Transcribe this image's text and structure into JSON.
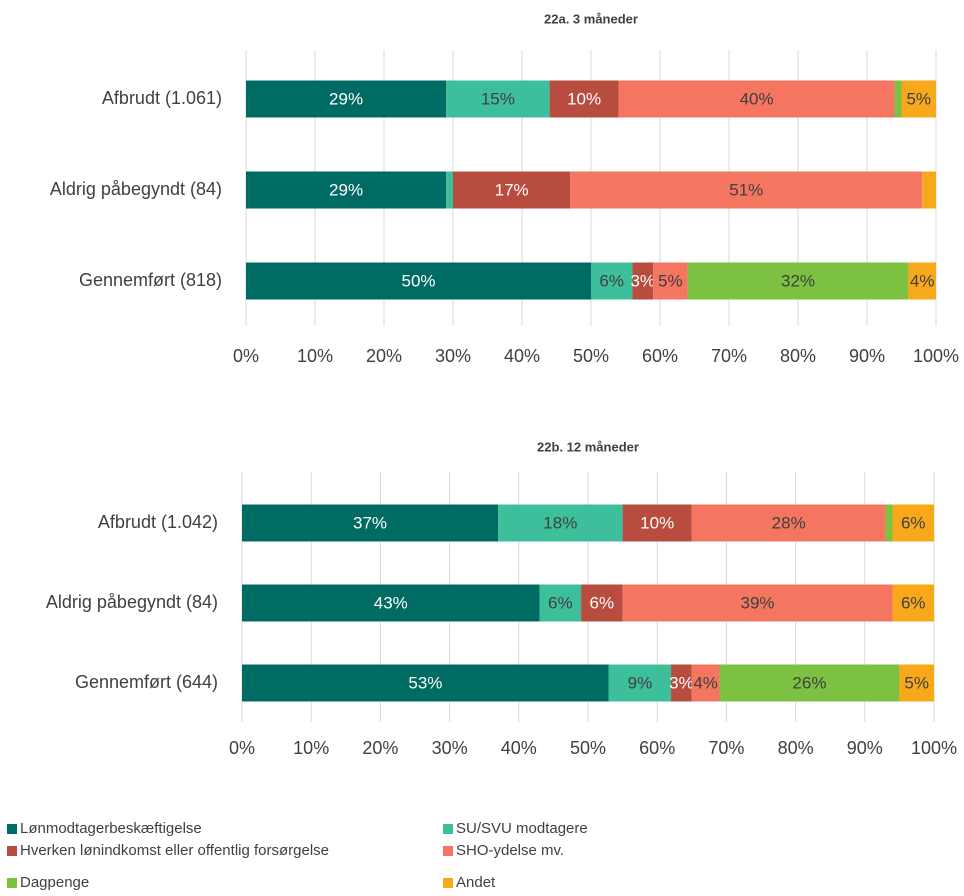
{
  "chart_data": [
    {
      "type": "stacked_bar_h",
      "title": "22a. 3 måneder",
      "categories": [
        "Afbrudt (1.061)",
        "Aldrig påbegyndt (84)",
        "Gennemført (818)"
      ],
      "xlim": [
        0,
        100
      ],
      "xticks": [
        {
          "value": 0,
          "label": "0%"
        },
        {
          "value": 10,
          "label": "10%"
        },
        {
          "value": 20,
          "label": "20%"
        },
        {
          "value": 30,
          "label": "30%"
        },
        {
          "value": 40,
          "label": "40%"
        },
        {
          "value": 50,
          "label": "50%"
        },
        {
          "value": 60,
          "label": "60%"
        },
        {
          "value": 70,
          "label": "70%"
        },
        {
          "value": 80,
          "label": "80%"
        },
        {
          "value": 90,
          "label": "90%"
        },
        {
          "value": 100,
          "label": "100%"
        }
      ],
      "grid": true,
      "series": [
        {
          "name": "Lønmodtagerbeskæftigelse",
          "color": "#006b63",
          "label_color": "#ffffff",
          "values": [
            29,
            29,
            50
          ],
          "value_labels": [
            "29%",
            "29%",
            "50%"
          ]
        },
        {
          "name": "SU/SVU modtagere",
          "color": "#3dbf9c",
          "label_color": "#404040",
          "values": [
            15,
            1,
            6
          ],
          "value_labels": [
            "15%",
            null,
            "6%"
          ]
        },
        {
          "name": "Hverken lønindkomst eller offentlig forsørgelse",
          "color": "#b84c3e",
          "label_color": "#ffffff",
          "values": [
            10,
            17,
            3
          ],
          "value_labels": [
            "10%",
            "17%",
            "3%"
          ]
        },
        {
          "name": "SHO-ydelse mv.",
          "color": "#f47560",
          "label_color": "#404040",
          "values": [
            40,
            51,
            5
          ],
          "value_labels": [
            "40%",
            "51%",
            "5%"
          ]
        },
        {
          "name": "Dagpenge",
          "color": "#7cc142",
          "label_color": "#404040",
          "values": [
            1,
            0,
            32
          ],
          "value_labels": [
            null,
            null,
            "32%"
          ]
        },
        {
          "name": "Andet",
          "color": "#f7a81b",
          "label_color": "#404040",
          "values": [
            5,
            2,
            4
          ],
          "value_labels": [
            "5%",
            null,
            "4%"
          ]
        }
      ]
    },
    {
      "type": "stacked_bar_h",
      "title": "22b. 12 måneder",
      "categories": [
        "Afbrudt (1.042)",
        "Aldrig påbegyndt (84)",
        "Gennemført (644)"
      ],
      "xlim": [
        0,
        100
      ],
      "xticks": [
        {
          "value": 0,
          "label": "0%"
        },
        {
          "value": 10,
          "label": "10%"
        },
        {
          "value": 20,
          "label": "20%"
        },
        {
          "value": 30,
          "label": "30%"
        },
        {
          "value": 40,
          "label": "40%"
        },
        {
          "value": 50,
          "label": "50%"
        },
        {
          "value": 60,
          "label": "60%"
        },
        {
          "value": 70,
          "label": "70%"
        },
        {
          "value": 80,
          "label": "80%"
        },
        {
          "value": 90,
          "label": "90%"
        },
        {
          "value": 100,
          "label": "100%"
        }
      ],
      "grid": true,
      "series": [
        {
          "name": "Lønmodtagerbeskæftigelse",
          "color": "#006b63",
          "label_color": "#ffffff",
          "values": [
            37,
            43,
            53
          ],
          "value_labels": [
            "37%",
            "43%",
            "53%"
          ]
        },
        {
          "name": "SU/SVU modtagere",
          "color": "#3dbf9c",
          "label_color": "#404040",
          "values": [
            18,
            6,
            9
          ],
          "value_labels": [
            "18%",
            "6%",
            "9%"
          ]
        },
        {
          "name": "Hverken lønindkomst eller offentlig forsørgelse",
          "color": "#b84c3e",
          "label_color": "#ffffff",
          "values": [
            10,
            6,
            3
          ],
          "value_labels": [
            "10%",
            "6%",
            "3%"
          ]
        },
        {
          "name": "SHO-ydelse mv.",
          "color": "#f47560",
          "label_color": "#404040",
          "values": [
            28,
            39,
            4
          ],
          "value_labels": [
            "28%",
            "39%",
            "4%"
          ]
        },
        {
          "name": "Dagpenge",
          "color": "#7cc142",
          "label_color": "#404040",
          "values": [
            1,
            0,
            26
          ],
          "value_labels": [
            null,
            null,
            "26%"
          ]
        },
        {
          "name": "Andet",
          "color": "#f7a81b",
          "label_color": "#404040",
          "values": [
            6,
            6,
            5
          ],
          "value_labels": [
            "6%",
            "6%",
            "5%"
          ]
        }
      ]
    }
  ]
}
